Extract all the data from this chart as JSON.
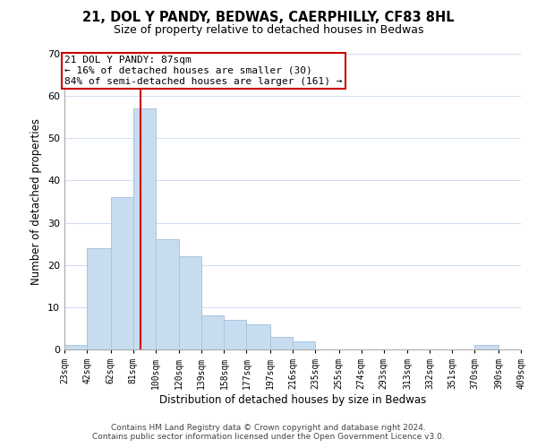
{
  "title": "21, DOL Y PANDY, BEDWAS, CAERPHILLY, CF83 8HL",
  "subtitle": "Size of property relative to detached houses in Bedwas",
  "xlabel": "Distribution of detached houses by size in Bedwas",
  "ylabel": "Number of detached properties",
  "bar_color": "#c8dcf0",
  "bar_edge_color": "#a8c4e0",
  "bin_edges": [
    23,
    42,
    62,
    81,
    100,
    120,
    139,
    158,
    177,
    197,
    216,
    235,
    255,
    274,
    293,
    313,
    332,
    351,
    370,
    390,
    409
  ],
  "bin_labels": [
    "23sqm",
    "42sqm",
    "62sqm",
    "81sqm",
    "100sqm",
    "120sqm",
    "139sqm",
    "158sqm",
    "177sqm",
    "197sqm",
    "216sqm",
    "235sqm",
    "255sqm",
    "274sqm",
    "293sqm",
    "313sqm",
    "332sqm",
    "351sqm",
    "370sqm",
    "390sqm",
    "409sqm"
  ],
  "counts": [
    1,
    24,
    36,
    57,
    26,
    22,
    8,
    7,
    6,
    3,
    2,
    0,
    0,
    0,
    0,
    0,
    0,
    0,
    1,
    0
  ],
  "property_value": 87,
  "vline_x": 87,
  "vline_color": "#cc0000",
  "annotation_title": "21 DOL Y PANDY: 87sqm",
  "annotation_line1": "← 16% of detached houses are smaller (30)",
  "annotation_line2": "84% of semi-detached houses are larger (161) →",
  "annotation_box_color": "#ffffff",
  "annotation_box_edge": "#cc0000",
  "ylim": [
    0,
    70
  ],
  "yticks": [
    0,
    10,
    20,
    30,
    40,
    50,
    60,
    70
  ],
  "footer_line1": "Contains HM Land Registry data © Crown copyright and database right 2024.",
  "footer_line2": "Contains public sector information licensed under the Open Government Licence v3.0."
}
